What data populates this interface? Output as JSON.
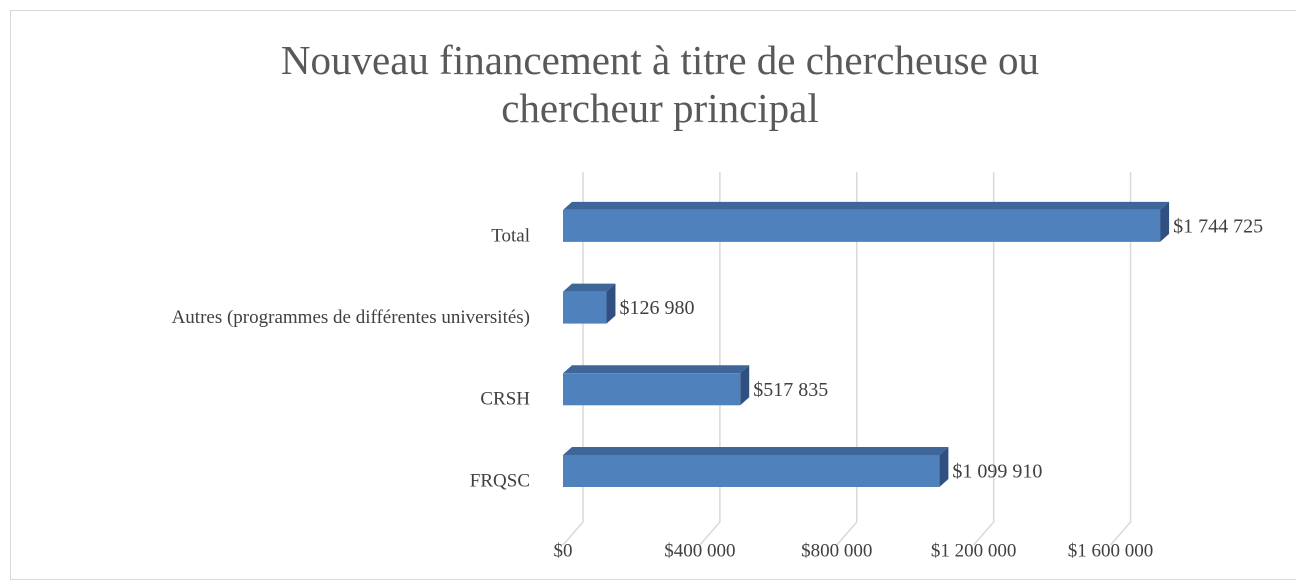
{
  "chart_data": {
    "type": "bar",
    "orientation": "horizontal",
    "title": "Nouveau financement à titre de chercheuse ou chercheur principal",
    "categories": [
      "FRQSC",
      "CRSH",
      "Autres (programmes de différentes universités)",
      "Total"
    ],
    "values": [
      1099910,
      517835,
      126980,
      1744725
    ],
    "value_labels": [
      "$1 099 910",
      "$517 835",
      "$126 980",
      "$1 744 725"
    ],
    "color": "#4f81bd",
    "xlim": [
      0,
      1800000
    ],
    "xticks": [
      {
        "value": 0,
        "label": "$0"
      },
      {
        "value": 400000,
        "label": "$400 000"
      },
      {
        "value": 800000,
        "label": "$800 000"
      },
      {
        "value": 1200000,
        "label": "$1 200 000"
      },
      {
        "value": 1600000,
        "label": "$1 600 000"
      }
    ],
    "grid": true
  }
}
